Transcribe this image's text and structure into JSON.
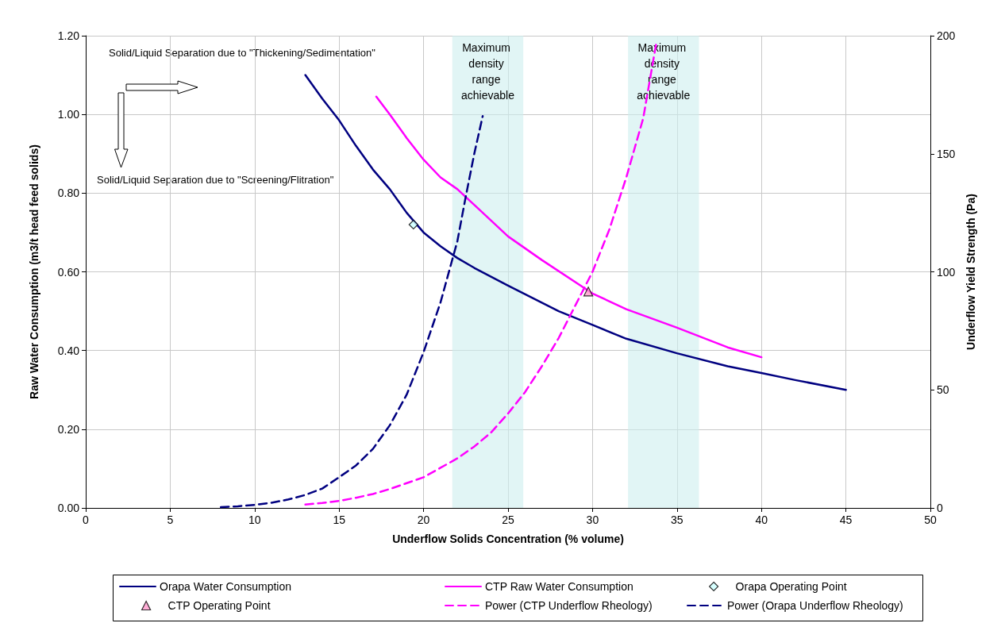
{
  "chart_data": {
    "type": "line",
    "xlabel": "Underflow Solids Concentration (% volume)",
    "ylabel": "Raw Water Consumption (m3/t head feed solids)",
    "y2label": "Underflow Yield Strength (Pa)",
    "annotations": [
      "Solid/Liquid Separation due to \"Thickening/Sedimentation\"",
      "Solid/Liquid Separation due to \"Screening/Flitration\""
    ],
    "series": [
      {
        "name": "Orapa Water Consumption",
        "color": "#000080",
        "line_style": "solid",
        "marker": "none",
        "x": [
          13,
          14,
          15,
          16,
          17,
          18,
          19,
          20,
          21,
          22,
          23,
          25,
          28,
          30,
          32,
          35,
          38,
          40,
          42,
          45
        ],
        "values": [
          1.1,
          1.04,
          0.985,
          0.92,
          0.86,
          0.81,
          0.75,
          0.7,
          0.665,
          0.635,
          0.61,
          0.565,
          0.5,
          0.465,
          0.43,
          0.393,
          0.36,
          0.343,
          0.325,
          0.3
        ]
      },
      {
        "name": "CTP Raw Water Consumption",
        "color": "#ff00ff",
        "line_style": "solid",
        "marker": "none",
        "x": [
          17.2,
          18,
          19,
          20,
          21,
          22,
          23,
          25,
          27,
          30,
          32,
          35,
          38,
          40
        ],
        "values": [
          1.045,
          1.0,
          0.94,
          0.885,
          0.84,
          0.81,
          0.77,
          0.69,
          0.63,
          0.545,
          0.505,
          0.458,
          0.408,
          0.383
        ]
      },
      {
        "name": "Orapa Operating Point",
        "type": "scatter",
        "color": "#ccffff",
        "marker": "diamond",
        "x": [
          19.4
        ],
        "values": [
          0.72
        ]
      },
      {
        "name": "CTP Operating Point",
        "type": "scatter",
        "color": "#ff99cc",
        "marker": "triangle",
        "x": [
          29.75
        ],
        "values": [
          0.55
        ]
      },
      {
        "name": "Power (CTP Underflow Rheology)",
        "axis": "y2",
        "color": "#ff00ff",
        "line_style": "dashed",
        "marker": "none",
        "x": [
          13,
          14,
          15,
          16,
          17,
          18,
          19,
          20,
          21,
          22,
          23,
          24,
          25,
          26,
          27,
          28,
          29,
          30,
          31,
          32,
          33,
          33.8
        ],
        "values": [
          1.4,
          2.1,
          3,
          4.3,
          5.9,
          8,
          10.5,
          13,
          17,
          21,
          26,
          32,
          40,
          49,
          60,
          72,
          86,
          100,
          118,
          140,
          165,
          198
        ]
      },
      {
        "name": "Power (Orapa Underflow Rheology)",
        "axis": "y2",
        "color": "#000080",
        "line_style": "dashed",
        "marker": "none",
        "x": [
          8,
          9,
          10,
          11,
          12,
          13,
          14,
          15,
          16,
          17,
          18,
          19,
          20,
          21,
          22,
          22.5,
          23,
          23.5
        ],
        "values": [
          0.3,
          0.7,
          1.3,
          2.2,
          3.6,
          5.5,
          8.2,
          13,
          18,
          25,
          35,
          48,
          66,
          87,
          113,
          132,
          150,
          166
        ]
      }
    ],
    "bands": [
      {
        "axis": "x",
        "from": 21.7,
        "to": 25.9,
        "label": "Maximum density range achievable",
        "color": "#cdeeee"
      },
      {
        "axis": "x",
        "from": 32.1,
        "to": 36.3,
        "label": "Maximum density range achievable",
        "color": "#cdeeee"
      }
    ],
    "xlim": [
      0,
      50
    ],
    "xticks": [
      0,
      5,
      10,
      15,
      20,
      25,
      30,
      35,
      40,
      45,
      50
    ],
    "ylim": [
      0,
      1.2
    ],
    "yticks": [
      {
        "value": 0,
        "label": "0.00"
      },
      {
        "value": 0.2,
        "label": "0.20"
      },
      {
        "value": 0.4,
        "label": "0.40"
      },
      {
        "value": 0.6,
        "label": "0.60"
      },
      {
        "value": 0.8,
        "label": "0.80"
      },
      {
        "value": 1.0,
        "label": "1.00"
      },
      {
        "value": 1.2,
        "label": "1.20"
      }
    ],
    "y2lim": [
      0,
      200
    ],
    "y2ticks": [
      0,
      50,
      100,
      150,
      200
    ],
    "grid": true,
    "legend": "bottom"
  }
}
